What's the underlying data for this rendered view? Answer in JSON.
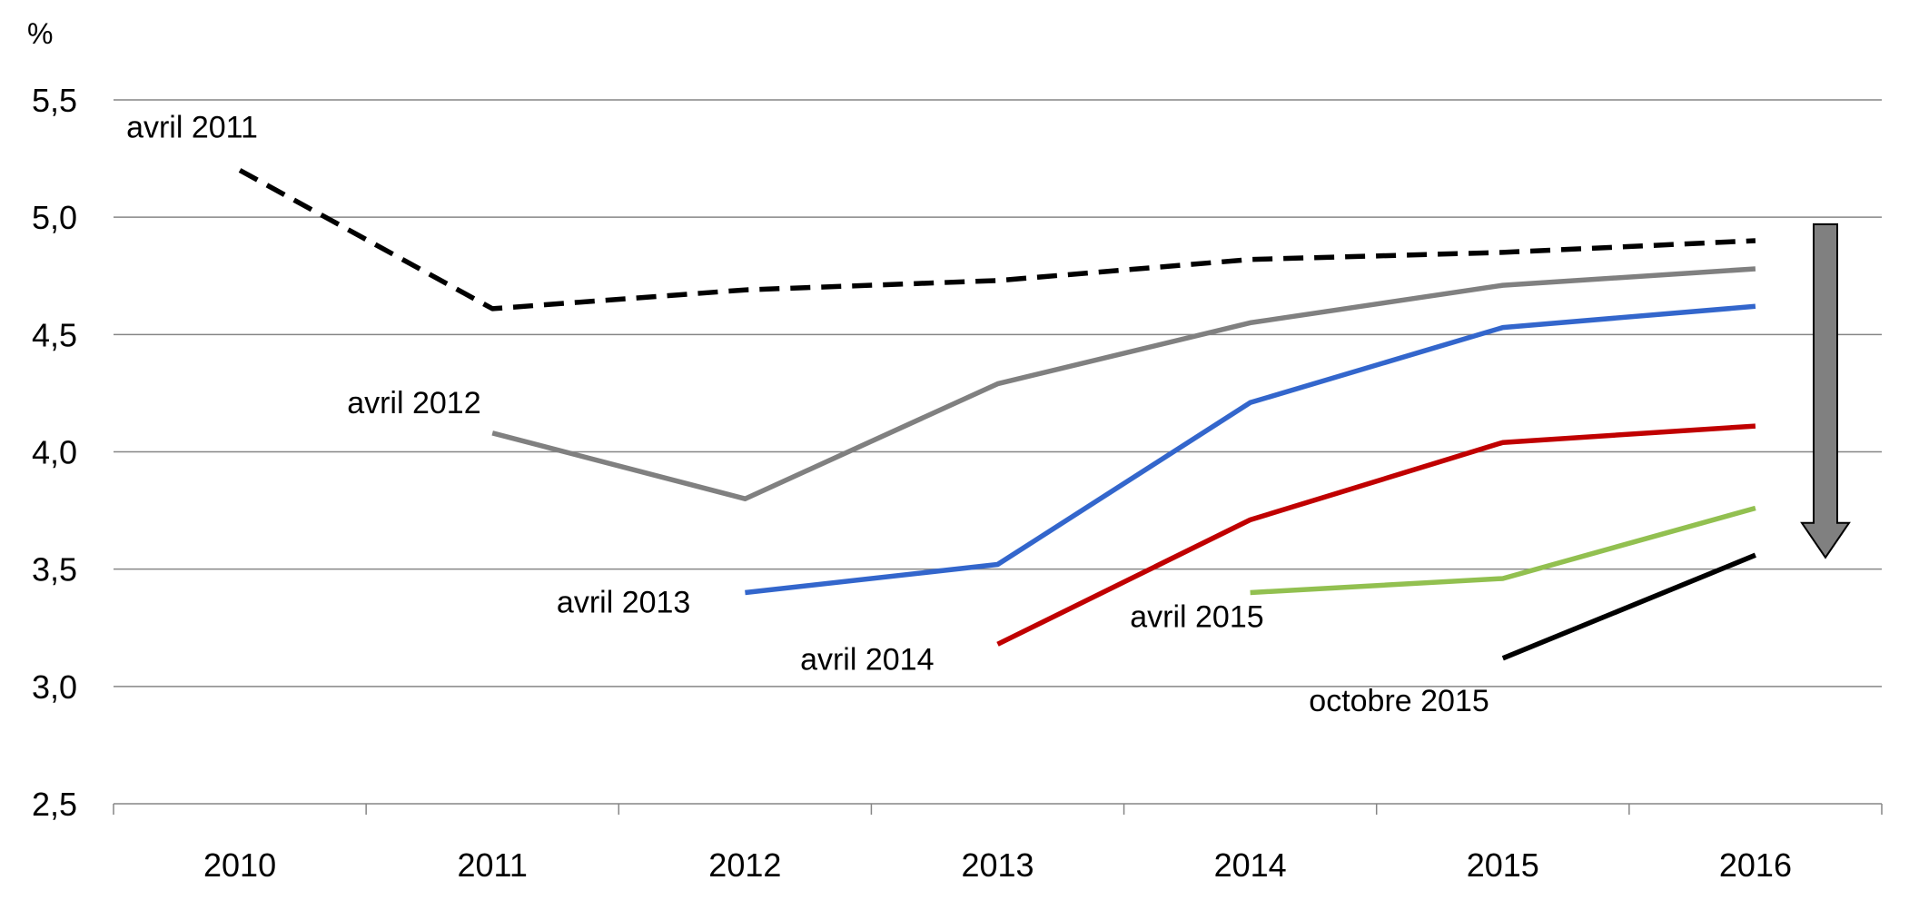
{
  "chart_data": {
    "type": "line",
    "ylabel": "%",
    "ylim": [
      2.5,
      5.5
    ],
    "y_ticks": [
      "2,5",
      "3,0",
      "3,5",
      "4,0",
      "4,5",
      "5,0",
      "5,5"
    ],
    "y_tick_values": [
      2.5,
      3.0,
      3.5,
      4.0,
      4.5,
      5.0,
      5.5
    ],
    "categories": [
      "2010",
      "2011",
      "2012",
      "2013",
      "2014",
      "2015",
      "2016"
    ],
    "grid": "horizontal",
    "series": [
      {
        "name": "avril  2011",
        "color": "#000000",
        "style": "dashed",
        "x": [
          "2010",
          "2011",
          "2012",
          "2013",
          "2014",
          "2015",
          "2016"
        ],
        "values": [
          5.2,
          4.61,
          4.69,
          4.73,
          4.82,
          4.85,
          4.9
        ]
      },
      {
        "name": "avril  2012",
        "color": "#808080",
        "style": "solid",
        "x": [
          "2011",
          "2012",
          "2013",
          "2014",
          "2015",
          "2016"
        ],
        "values": [
          4.08,
          3.8,
          4.29,
          4.55,
          4.71,
          4.78
        ]
      },
      {
        "name": "avril  2013",
        "color": "#3366cc",
        "style": "solid",
        "x": [
          "2012",
          "2013",
          "2014",
          "2015",
          "2016"
        ],
        "values": [
          3.4,
          3.52,
          4.21,
          4.53,
          4.62
        ]
      },
      {
        "name": "avril  2014",
        "color": "#c00000",
        "style": "solid",
        "x": [
          "2013",
          "2014",
          "2015",
          "2016"
        ],
        "values": [
          3.18,
          3.71,
          4.04,
          4.11
        ]
      },
      {
        "name": "avril  2015",
        "color": "#92c050",
        "style": "solid",
        "x": [
          "2014",
          "2015",
          "2016"
        ],
        "values": [
          3.4,
          3.46,
          3.76
        ]
      },
      {
        "name": "octobre 2015",
        "color": "#000000",
        "style": "solid",
        "x": [
          "2015",
          "2016"
        ],
        "values": [
          3.12,
          3.56
        ]
      }
    ],
    "annotation": {
      "type": "down-arrow",
      "color": "#808080",
      "from": 4.97,
      "to": 3.55
    }
  }
}
